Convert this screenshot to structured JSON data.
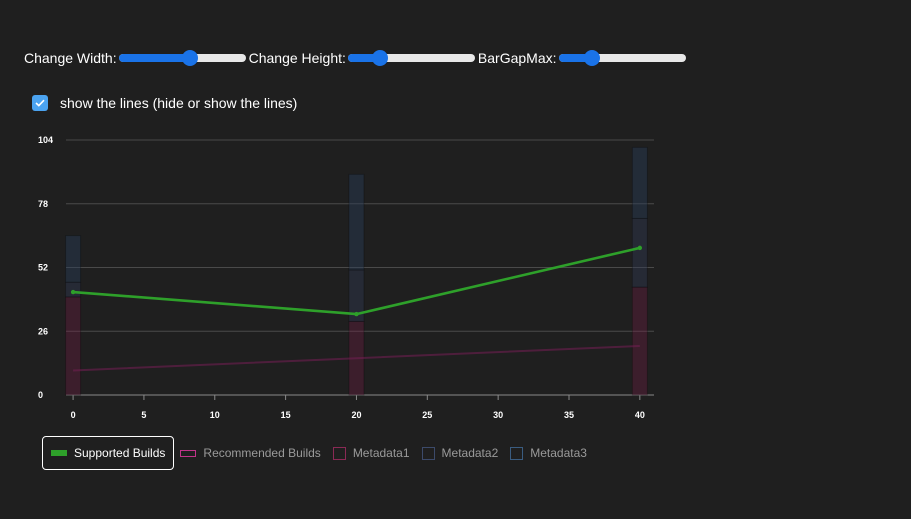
{
  "controls": {
    "width_label": "Change Width:",
    "height_label": "Change Height:",
    "gap_label": "BarGapMax:",
    "width_value": 0.57,
    "height_value": 0.22,
    "gap_value": 0.23
  },
  "toggle": {
    "label": "show the lines (hide or show the lines)",
    "checked": true
  },
  "colors": {
    "accent": "#1a73e8",
    "supported": "#2ea02a",
    "recommended": "#c2338a",
    "metadata1": "#8a2a55",
    "metadata2": "#3c4a6a",
    "metadata3": "#3a5c80"
  },
  "chart_data": {
    "type": "bar",
    "x": [
      0,
      20,
      40
    ],
    "x_ticks": [
      0,
      5,
      10,
      15,
      20,
      25,
      30,
      35,
      40
    ],
    "xlim": [
      -0.5,
      41
    ],
    "y_ticks": [
      0,
      26,
      52,
      78,
      104
    ],
    "ylim": [
      0,
      104
    ],
    "grid": true,
    "legend_placement": "bottom-left",
    "lines": [
      {
        "name": "Supported Builds",
        "values": [
          42,
          33,
          60
        ],
        "active": true
      },
      {
        "name": "Recommended Builds",
        "values": [
          10,
          15,
          20
        ],
        "active": false
      }
    ],
    "bars": [
      {
        "name": "Metadata1",
        "values": [
          40,
          30,
          44
        ]
      },
      {
        "name": "Metadata2",
        "values": [
          6,
          21,
          28
        ]
      },
      {
        "name": "Metadata3",
        "values": [
          19,
          39,
          29
        ]
      }
    ]
  }
}
